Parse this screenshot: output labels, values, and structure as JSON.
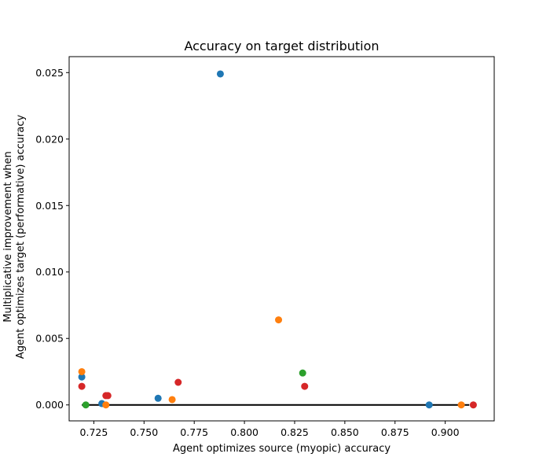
{
  "chart_data": {
    "type": "scatter",
    "title": "Accuracy on target distribution",
    "xlabel": "Agent optimizes source (myopic) accuracy",
    "ylabel_lines": [
      "Multiplicative improvement when",
      "Agent optimizes target (performative) accuracy"
    ],
    "xlim": [
      0.7127,
      0.9244
    ],
    "ylim": [
      -0.0012,
      0.0262
    ],
    "xticks": [
      0.725,
      0.75,
      0.775,
      0.8,
      0.825,
      0.85,
      0.875,
      0.9
    ],
    "xtick_labels": [
      "0.725",
      "0.750",
      "0.775",
      "0.800",
      "0.825",
      "0.850",
      "0.875",
      "0.900"
    ],
    "yticks": [
      0.0,
      0.005,
      0.01,
      0.015,
      0.02,
      0.025
    ],
    "ytick_labels": [
      "0.000",
      "0.005",
      "0.010",
      "0.015",
      "0.020",
      "0.025"
    ],
    "grid": false,
    "legend": "none",
    "baseline": {
      "x": [
        0.719,
        0.912
      ],
      "y": 0.0,
      "color": "#000000"
    },
    "series": [
      {
        "color": "#1f77b4",
        "points": [
          {
            "x": 0.719,
            "y": 0.0021
          },
          {
            "x": 0.729,
            "y": 0.0001
          },
          {
            "x": 0.757,
            "y": 0.0005
          },
          {
            "x": 0.788,
            "y": 0.0249
          },
          {
            "x": 0.892,
            "y": 0.0
          }
        ]
      },
      {
        "color": "#ff7f0e",
        "points": [
          {
            "x": 0.719,
            "y": 0.0025
          },
          {
            "x": 0.731,
            "y": 0.0
          },
          {
            "x": 0.764,
            "y": 0.0004
          },
          {
            "x": 0.817,
            "y": 0.0064
          },
          {
            "x": 0.908,
            "y": 0.0
          }
        ]
      },
      {
        "color": "#2ca02c",
        "points": [
          {
            "x": 0.721,
            "y": 0.0
          },
          {
            "x": 0.829,
            "y": 0.0024
          }
        ]
      },
      {
        "color": "#d62728",
        "points": [
          {
            "x": 0.719,
            "y": 0.0014
          },
          {
            "x": 0.731,
            "y": 0.0007
          },
          {
            "x": 0.732,
            "y": 0.0007
          },
          {
            "x": 0.767,
            "y": 0.0017
          },
          {
            "x": 0.83,
            "y": 0.0014
          },
          {
            "x": 0.914,
            "y": 0.0
          }
        ]
      }
    ]
  }
}
